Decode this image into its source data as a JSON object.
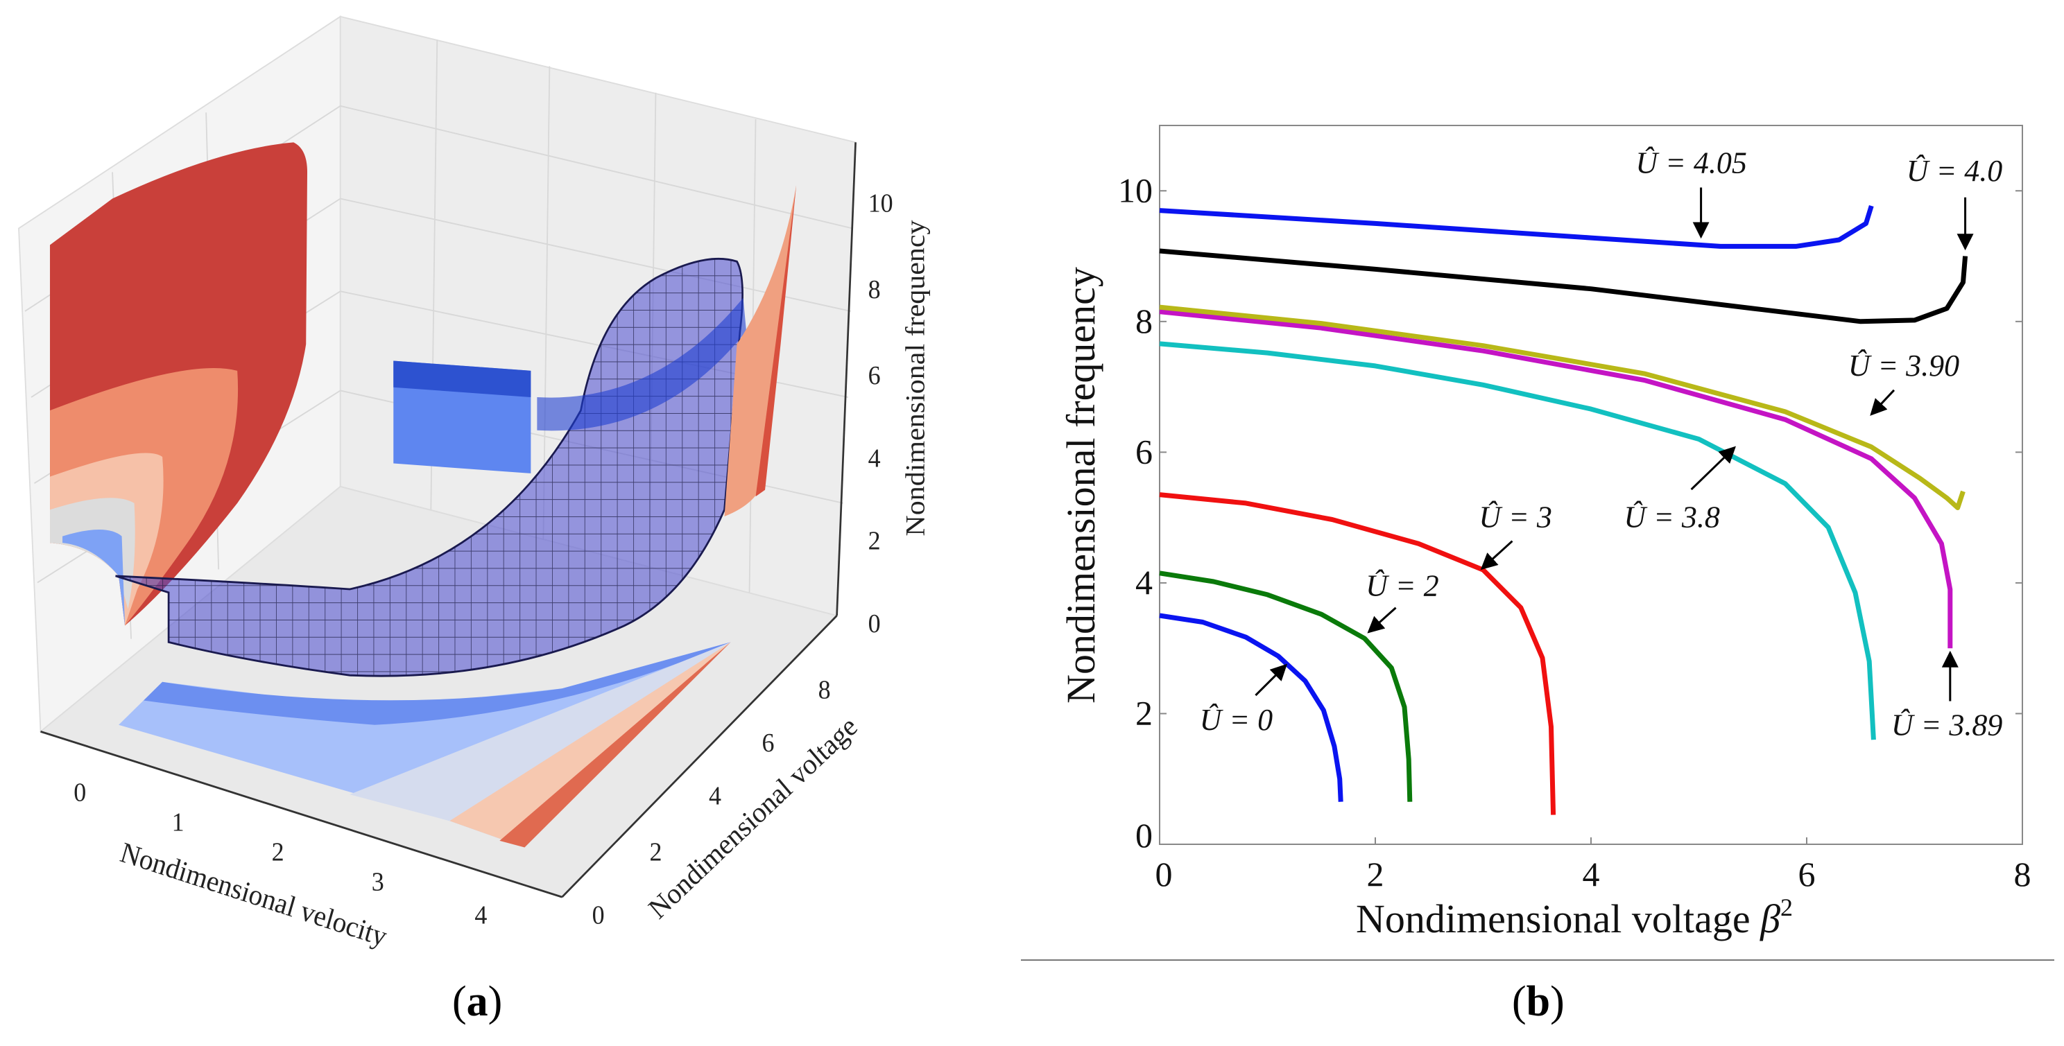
{
  "captions": {
    "a": "a",
    "b": "b"
  },
  "chart_data": [
    {
      "type": "surface",
      "panel": "a",
      "xlabel": "Nondimensional velocity",
      "ylabel": "Nondimensional voltage",
      "zlabel": "Nondimensional frequency",
      "xticks": [
        "0",
        "1",
        "2",
        "3",
        "4"
      ],
      "yticks": [
        "0",
        "2",
        "4",
        "6",
        "8"
      ],
      "zticks": [
        "0",
        "2",
        "4",
        "6",
        "8",
        "10"
      ],
      "colors": {
        "surface": "#4a4ad0",
        "warm": "#c9403a",
        "cool": "#6c8ff0"
      }
    },
    {
      "type": "line",
      "panel": "b",
      "xlabel": "Nondimensional voltage",
      "xlabel_symbol": "β",
      "xlabel_sup": "2",
      "ylabel": "Nondimensional frequency",
      "xlim": [
        0,
        8
      ],
      "ylim": [
        0,
        11
      ],
      "xticks": [
        0,
        2,
        4,
        6,
        8
      ],
      "yticks": [
        0,
        2,
        4,
        6,
        8,
        10
      ],
      "grid": false,
      "series": [
        {
          "name": "Û = 0",
          "color": "#0a14f0",
          "points": [
            [
              0,
              3.5
            ],
            [
              0.4,
              3.4
            ],
            [
              0.8,
              3.17
            ],
            [
              1.1,
              2.88
            ],
            [
              1.35,
              2.5
            ],
            [
              1.52,
              2.05
            ],
            [
              1.62,
              1.5
            ],
            [
              1.67,
              1.0
            ],
            [
              1.68,
              0.65
            ]
          ]
        },
        {
          "name": "Û = 2",
          "color": "#0a7a0a",
          "points": [
            [
              0,
              4.15
            ],
            [
              0.5,
              4.02
            ],
            [
              1.0,
              3.82
            ],
            [
              1.5,
              3.52
            ],
            [
              1.9,
              3.15
            ],
            [
              2.15,
              2.7
            ],
            [
              2.27,
              2.1
            ],
            [
              2.31,
              1.3
            ],
            [
              2.32,
              0.65
            ]
          ]
        },
        {
          "name": "Û = 3",
          "color": "#f01010",
          "points": [
            [
              0,
              5.35
            ],
            [
              0.8,
              5.22
            ],
            [
              1.6,
              4.97
            ],
            [
              2.4,
              4.6
            ],
            [
              3.0,
              4.2
            ],
            [
              3.35,
              3.62
            ],
            [
              3.55,
              2.85
            ],
            [
              3.63,
              1.8
            ],
            [
              3.65,
              0.45
            ]
          ]
        },
        {
          "name": "Û = 3.8",
          "color": "#12c0c0",
          "points": [
            [
              0,
              7.66
            ],
            [
              1,
              7.52
            ],
            [
              2,
              7.32
            ],
            [
              3,
              7.03
            ],
            [
              4,
              6.66
            ],
            [
              5,
              6.2
            ],
            [
              5.8,
              5.52
            ],
            [
              6.2,
              4.85
            ],
            [
              6.45,
              3.85
            ],
            [
              6.58,
              2.8
            ],
            [
              6.62,
              1.6
            ]
          ]
        },
        {
          "name": "Û = 3.89",
          "color": "#c414c4",
          "points": [
            [
              0,
              8.15
            ],
            [
              1.5,
              7.9
            ],
            [
              3,
              7.55
            ],
            [
              4.5,
              7.1
            ],
            [
              5.8,
              6.5
            ],
            [
              6.6,
              5.9
            ],
            [
              7.0,
              5.3
            ],
            [
              7.25,
              4.6
            ],
            [
              7.33,
              3.9
            ],
            [
              7.33,
              3.0
            ]
          ]
        },
        {
          "name": "Û = 3.90",
          "color": "#b8b818",
          "points": [
            [
              0,
              8.22
            ],
            [
              1.5,
              7.97
            ],
            [
              3,
              7.63
            ],
            [
              4.5,
              7.2
            ],
            [
              5.8,
              6.62
            ],
            [
              6.6,
              6.08
            ],
            [
              7.05,
              5.6
            ],
            [
              7.3,
              5.3
            ],
            [
              7.4,
              5.15
            ],
            [
              7.45,
              5.4
            ]
          ]
        },
        {
          "name": "Û = 4.0",
          "color": "#000000",
          "points": [
            [
              0,
              9.08
            ],
            [
              2,
              8.8
            ],
            [
              4,
              8.5
            ],
            [
              5.5,
              8.2
            ],
            [
              6.5,
              8.0
            ],
            [
              7.0,
              8.02
            ],
            [
              7.3,
              8.2
            ],
            [
              7.45,
              8.6
            ],
            [
              7.47,
              9.0
            ]
          ]
        },
        {
          "name": "Û = 4.05",
          "color": "#0a14f0",
          "points": [
            [
              0,
              9.7
            ],
            [
              2,
              9.5
            ],
            [
              4,
              9.28
            ],
            [
              5.2,
              9.15
            ],
            [
              5.9,
              9.15
            ],
            [
              6.3,
              9.25
            ],
            [
              6.55,
              9.5
            ],
            [
              6.6,
              9.77
            ]
          ]
        }
      ],
      "annotations": [
        {
          "text": "Û = 0",
          "at": [
            0.71,
            1.9
          ],
          "arrow_from": [
            0.89,
            2.28
          ],
          "arrow_to": [
            1.17,
            2.74
          ]
        },
        {
          "text": "Û = 2",
          "at": [
            2.25,
            3.95
          ],
          "arrow_from": [
            2.19,
            3.62
          ],
          "arrow_to": [
            1.94,
            3.25
          ]
        },
        {
          "text": "Û = 3",
          "at": [
            3.3,
            5.0
          ],
          "arrow_from": [
            3.27,
            4.64
          ],
          "arrow_to": [
            2.99,
            4.22
          ]
        },
        {
          "text": "Û = 3.8",
          "at": [
            4.75,
            5.0
          ],
          "arrow_from": [
            4.93,
            5.43
          ],
          "arrow_to": [
            5.33,
            6.07
          ]
        },
        {
          "text": "Û = 3.89",
          "at": [
            7.3,
            1.82
          ],
          "arrow_from": [
            7.33,
            2.19
          ],
          "arrow_to": [
            7.33,
            2.93
          ]
        },
        {
          "text": "Û = 3.90",
          "at": [
            6.9,
            7.32
          ],
          "arrow_from": [
            6.81,
            6.95
          ],
          "arrow_to": [
            6.6,
            6.58
          ]
        },
        {
          "text": "Û = 4.0",
          "at": [
            7.37,
            10.3
          ],
          "arrow_from": [
            7.47,
            9.9
          ],
          "arrow_to": [
            7.47,
            9.12
          ]
        },
        {
          "text": "Û = 4.05",
          "at": [
            4.93,
            10.42
          ],
          "arrow_from": [
            5.02,
            10.05
          ],
          "arrow_to": [
            5.02,
            9.3
          ]
        }
      ]
    }
  ]
}
